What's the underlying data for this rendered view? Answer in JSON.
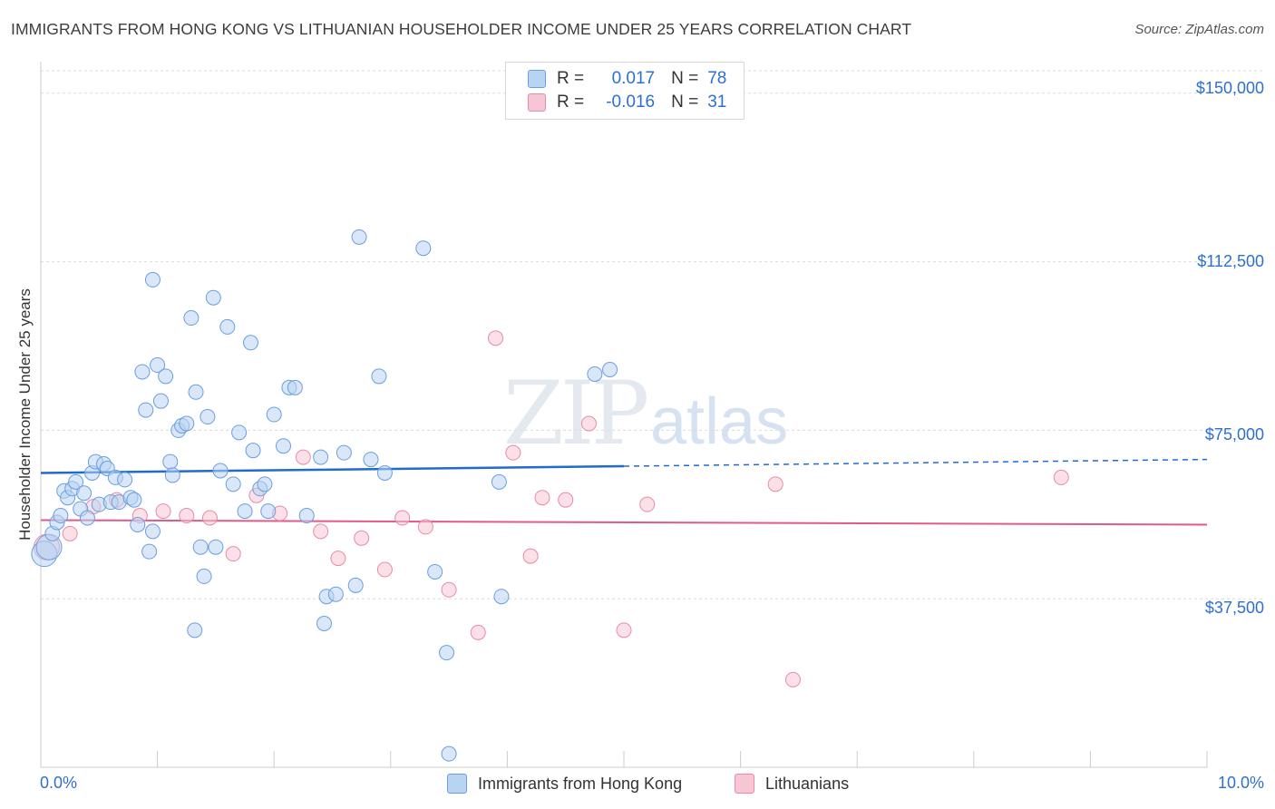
{
  "title": "IMMIGRANTS FROM HONG KONG VS LITHUANIAN HOUSEHOLDER INCOME UNDER 25 YEARS CORRELATION CHART",
  "source": "Source: ZipAtlas.com",
  "watermark": {
    "zip": "ZIP",
    "atlas": "atlas"
  },
  "legend": {
    "r_label": "R =",
    "n_label": "N =",
    "series": [
      {
        "r": "0.017",
        "n": "78"
      },
      {
        "r": "-0.016",
        "n": "31"
      }
    ]
  },
  "bottom_legend": [
    "Immigrants from Hong Kong",
    "Lithuanians"
  ],
  "colors": {
    "blue_fill": "#b9d3f3",
    "blue_stroke": "#6a9ee0",
    "blue_line": "#1f6bd0",
    "pink_fill": "#f7c6d4",
    "pink_stroke": "#e88aa8",
    "pink_line": "#e05a8a",
    "tick_text": "#2e6fd0",
    "grid": "#dcdcdc"
  },
  "chart_data": {
    "type": "scatter",
    "title": "IMMIGRANTS FROM HONG KONG VS LITHUANIAN HOUSEHOLDER INCOME UNDER 25 YEARS CORRELATION CHART",
    "xlabel": "",
    "ylabel": "Householder Income Under 25 years",
    "xlim": [
      0,
      10
    ],
    "ylim": [
      0,
      155000
    ],
    "x_tick_labels": [
      "0.0%",
      "10.0%"
    ],
    "y_ticks": [
      37500,
      75000,
      112500,
      150000
    ],
    "y_tick_labels": [
      "$37,500",
      "$75,000",
      "$112,500",
      "$150,000"
    ],
    "grid": true,
    "legend_position": "top-center",
    "series": [
      {
        "name": "Immigrants from Hong Kong",
        "r": 0.017,
        "n": 78,
        "trend": {
          "x": [
            0,
            5.0
          ],
          "y": [
            65500,
            67000
          ],
          "dashed_to": [
            10,
            68500
          ]
        },
        "points": [
          [
            0.03,
            47500
          ],
          [
            0.07,
            49000
          ],
          [
            0.1,
            52000
          ],
          [
            0.14,
            54500
          ],
          [
            0.17,
            56000
          ],
          [
            0.2,
            61500
          ],
          [
            0.23,
            60000
          ],
          [
            0.27,
            62000
          ],
          [
            0.3,
            63500
          ],
          [
            0.34,
            57500
          ],
          [
            0.37,
            61000
          ],
          [
            0.4,
            55500
          ],
          [
            0.44,
            65500
          ],
          [
            0.47,
            68000
          ],
          [
            0.5,
            58500
          ],
          [
            0.54,
            67500
          ],
          [
            0.57,
            66500
          ],
          [
            0.6,
            59000
          ],
          [
            0.64,
            64500
          ],
          [
            0.67,
            59000
          ],
          [
            0.72,
            64000
          ],
          [
            0.77,
            60000
          ],
          [
            0.8,
            59500
          ],
          [
            0.83,
            54000
          ],
          [
            0.87,
            88000
          ],
          [
            0.9,
            79500
          ],
          [
            0.93,
            48000
          ],
          [
            0.96,
            52500
          ],
          [
            0.96,
            108500
          ],
          [
            1.0,
            89500
          ],
          [
            1.03,
            81500
          ],
          [
            1.07,
            87000
          ],
          [
            1.11,
            68000
          ],
          [
            1.13,
            65000
          ],
          [
            1.18,
            75000
          ],
          [
            1.21,
            76000
          ],
          [
            1.25,
            76500
          ],
          [
            1.29,
            100000
          ],
          [
            1.33,
            83500
          ],
          [
            1.37,
            49000
          ],
          [
            1.4,
            42500
          ],
          [
            1.43,
            78000
          ],
          [
            1.48,
            104500
          ],
          [
            1.5,
            49000
          ],
          [
            1.54,
            66000
          ],
          [
            1.6,
            98000
          ],
          [
            1.65,
            63000
          ],
          [
            1.7,
            74500
          ],
          [
            1.75,
            57000
          ],
          [
            1.8,
            94500
          ],
          [
            1.82,
            70500
          ],
          [
            1.88,
            62000
          ],
          [
            1.92,
            63000
          ],
          [
            1.95,
            57000
          ],
          [
            2.0,
            78500
          ],
          [
            2.08,
            71500
          ],
          [
            2.13,
            84500
          ],
          [
            2.18,
            84500
          ],
          [
            2.28,
            56000
          ],
          [
            2.4,
            69000
          ],
          [
            2.43,
            32000
          ],
          [
            2.45,
            38000
          ],
          [
            2.53,
            38500
          ],
          [
            2.6,
            70000
          ],
          [
            2.7,
            40500
          ],
          [
            2.73,
            118000
          ],
          [
            2.83,
            68500
          ],
          [
            2.9,
            87000
          ],
          [
            2.95,
            65500
          ],
          [
            3.28,
            115500
          ],
          [
            3.38,
            43500
          ],
          [
            3.48,
            25500
          ],
          [
            3.5,
            3000
          ],
          [
            3.93,
            63500
          ],
          [
            3.95,
            38000
          ],
          [
            4.75,
            87500
          ],
          [
            4.88,
            88500
          ],
          [
            1.32,
            30500
          ]
        ]
      },
      {
        "name": "Lithuanians",
        "r": -0.016,
        "n": 31,
        "trend": {
          "x": [
            0,
            10
          ],
          "y": [
            55000,
            54000
          ]
        },
        "points": [
          [
            0.05,
            49000
          ],
          [
            0.25,
            52000
          ],
          [
            0.45,
            58000
          ],
          [
            0.65,
            59500
          ],
          [
            0.85,
            56000
          ],
          [
            1.05,
            57000
          ],
          [
            1.25,
            56000
          ],
          [
            1.45,
            55500
          ],
          [
            1.65,
            47500
          ],
          [
            1.85,
            60500
          ],
          [
            2.05,
            56500
          ],
          [
            2.25,
            69000
          ],
          [
            2.4,
            52500
          ],
          [
            2.55,
            46500
          ],
          [
            2.75,
            51000
          ],
          [
            2.95,
            44000
          ],
          [
            3.1,
            55500
          ],
          [
            3.3,
            53500
          ],
          [
            3.5,
            39500
          ],
          [
            3.75,
            30000
          ],
          [
            3.9,
            95500
          ],
          [
            4.05,
            70000
          ],
          [
            4.2,
            47000
          ],
          [
            4.3,
            60000
          ],
          [
            4.5,
            59500
          ],
          [
            4.7,
            76500
          ],
          [
            5.0,
            30500
          ],
          [
            5.2,
            58500
          ],
          [
            6.3,
            63000
          ],
          [
            6.45,
            19500
          ],
          [
            8.75,
            64500
          ]
        ]
      }
    ]
  }
}
